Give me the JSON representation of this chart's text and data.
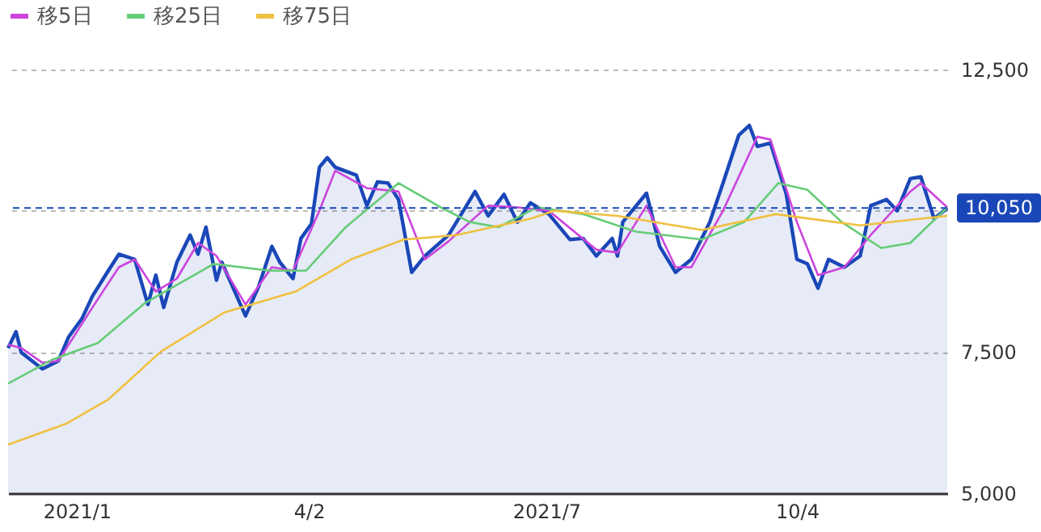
{
  "chart_data": {
    "type": "line",
    "legend": "top left",
    "grid": "y",
    "marker": "none",
    "line_style": "solid",
    "xlim": [
      "2020-12-09",
      "2021-11-30"
    ],
    "xticks": [
      {
        "value": "2021-01-04",
        "label": "2021/1"
      },
      {
        "value": "2021-04-02",
        "label": "4/2"
      },
      {
        "value": "2021-07-01",
        "label": "2021/7"
      },
      {
        "value": "2021-10-04",
        "label": "10/4"
      }
    ],
    "ylim": [
      5000,
      12500
    ],
    "yticks": [
      {
        "value": 5000,
        "label": "5,000"
      },
      {
        "value": 7500,
        "label": "7,500"
      },
      {
        "value": 10000,
        "label": null
      },
      {
        "value": 12500,
        "label": "12,500"
      }
    ],
    "ref_lines": [
      {
        "axis": "y",
        "value": 10050,
        "label": "10,050",
        "color": "#1a47b8",
        "line_style": "dashed"
      }
    ],
    "series": [
      {
        "type": "area",
        "color": "#1a47b8",
        "x": [
          "2020-12-09",
          "2020-12-12",
          "2020-12-14",
          "2020-12-22",
          "2020-12-28",
          "2021-01-01",
          "2021-01-06",
          "2021-01-10",
          "2021-01-16",
          "2021-01-20",
          "2021-01-26",
          "2021-01-31",
          "2021-02-03",
          "2021-02-06",
          "2021-02-11",
          "2021-02-16",
          "2021-02-19",
          "2021-02-22",
          "2021-02-26",
          "2021-02-28",
          "2021-03-09",
          "2021-03-14",
          "2021-03-19",
          "2021-03-22",
          "2021-03-27",
          "2021-03-30",
          "2021-04-03",
          "2021-04-06",
          "2021-04-09",
          "2021-04-12",
          "2021-04-20",
          "2021-04-24",
          "2021-04-28",
          "2021-05-02",
          "2021-05-06",
          "2021-05-11",
          "2021-05-16",
          "2021-05-25",
          "2021-06-04",
          "2021-06-09",
          "2021-06-15",
          "2021-06-20",
          "2021-06-25",
          "2021-07-02",
          "2021-07-10",
          "2021-07-15",
          "2021-07-20",
          "2021-07-26",
          "2021-07-28",
          "2021-07-30",
          "2021-08-08",
          "2021-08-13",
          "2021-08-19",
          "2021-08-25",
          "2021-09-01",
          "2021-09-06",
          "2021-09-12",
          "2021-09-16",
          "2021-09-19",
          "2021-09-24",
          "2021-09-30",
          "2021-10-04",
          "2021-10-08",
          "2021-10-12",
          "2021-10-16",
          "2021-10-22",
          "2021-10-28",
          "2021-11-01",
          "2021-11-07",
          "2021-11-11",
          "2021-11-16",
          "2021-11-20",
          "2021-11-25",
          "2021-11-30"
        ],
        "values": [
          7570,
          7860,
          7490,
          7200,
          7340,
          7770,
          8090,
          8490,
          8940,
          9230,
          9140,
          8340,
          8860,
          8290,
          9090,
          9570,
          9230,
          9710,
          8770,
          9090,
          8140,
          8660,
          9370,
          9090,
          8800,
          9510,
          9770,
          10770,
          10940,
          10770,
          10630,
          10090,
          10510,
          10490,
          10200,
          8910,
          9200,
          9570,
          10340,
          9910,
          10290,
          9800,
          10140,
          9940,
          9490,
          9510,
          9200,
          9510,
          9200,
          9800,
          10310,
          9370,
          8910,
          9140,
          9800,
          10490,
          11340,
          11510,
          11140,
          11200,
          10290,
          9140,
          9060,
          8630,
          9140,
          9000,
          9200,
          10090,
          10200,
          10000,
          10570,
          10600,
          9860,
          10050
        ]
      },
      {
        "name": "移5日",
        "color": "#cc44dd",
        "x": [
          "2020-12-09",
          "2020-12-14",
          "2020-12-22",
          "2020-12-28",
          "2021-01-10",
          "2021-01-20",
          "2021-01-26",
          "2021-02-03",
          "2021-02-11",
          "2021-02-19",
          "2021-02-26",
          "2021-03-09",
          "2021-03-19",
          "2021-03-27",
          "2021-04-06",
          "2021-04-12",
          "2021-04-24",
          "2021-05-06",
          "2021-05-16",
          "2021-05-25",
          "2021-06-09",
          "2021-06-20",
          "2021-07-02",
          "2021-07-20",
          "2021-07-28",
          "2021-08-08",
          "2021-08-19",
          "2021-08-25",
          "2021-09-06",
          "2021-09-19",
          "2021-09-24",
          "2021-10-04",
          "2021-10-12",
          "2021-10-22",
          "2021-11-01",
          "2021-11-16",
          "2021-11-20",
          "2021-11-30"
        ],
        "values": [
          7630,
          7570,
          7310,
          7340,
          8290,
          9000,
          9140,
          8570,
          8800,
          9430,
          9200,
          8340,
          9000,
          8940,
          10000,
          10710,
          10400,
          10340,
          9140,
          9460,
          10090,
          10060,
          10000,
          9310,
          9260,
          10090,
          9000,
          9000,
          10000,
          11310,
          11260,
          9800,
          8860,
          9000,
          9570,
          10340,
          10490,
          10060
        ]
      },
      {
        "name": "移25日",
        "color": "#66cc77",
        "x": [
          "2020-12-09",
          "2020-12-26",
          "2021-01-12",
          "2021-01-30",
          "2021-02-25",
          "2021-03-18",
          "2021-04-01",
          "2021-04-16",
          "2021-05-06",
          "2021-05-22",
          "2021-06-02",
          "2021-06-13",
          "2021-06-25",
          "2021-06-28",
          "2021-07-15",
          "2021-08-04",
          "2021-08-29",
          "2021-09-14",
          "2021-09-27",
          "2021-10-08",
          "2021-10-21",
          "2021-11-05",
          "2021-11-16",
          "2021-11-30"
        ],
        "values": [
          6940,
          7370,
          7660,
          8370,
          9060,
          8940,
          8940,
          9710,
          10490,
          10060,
          9800,
          9710,
          10000,
          10060,
          9940,
          9630,
          9490,
          9800,
          10490,
          10370,
          9800,
          9340,
          9430,
          10060
        ]
      },
      {
        "name": "移75日",
        "color": "#f0c040",
        "x": [
          "2020-12-09",
          "2020-12-31",
          "2021-01-16",
          "2021-02-05",
          "2021-03-01",
          "2021-03-28",
          "2021-04-18",
          "2021-05-08",
          "2021-05-28",
          "2021-06-25",
          "2021-07-04",
          "2021-07-28",
          "2021-08-29",
          "2021-09-26",
          "2021-10-28",
          "2021-11-30"
        ],
        "values": [
          5860,
          6230,
          6660,
          7510,
          8200,
          8570,
          9140,
          9490,
          9570,
          9860,
          10000,
          9910,
          9660,
          9940,
          9740,
          9910
        ]
      }
    ]
  }
}
